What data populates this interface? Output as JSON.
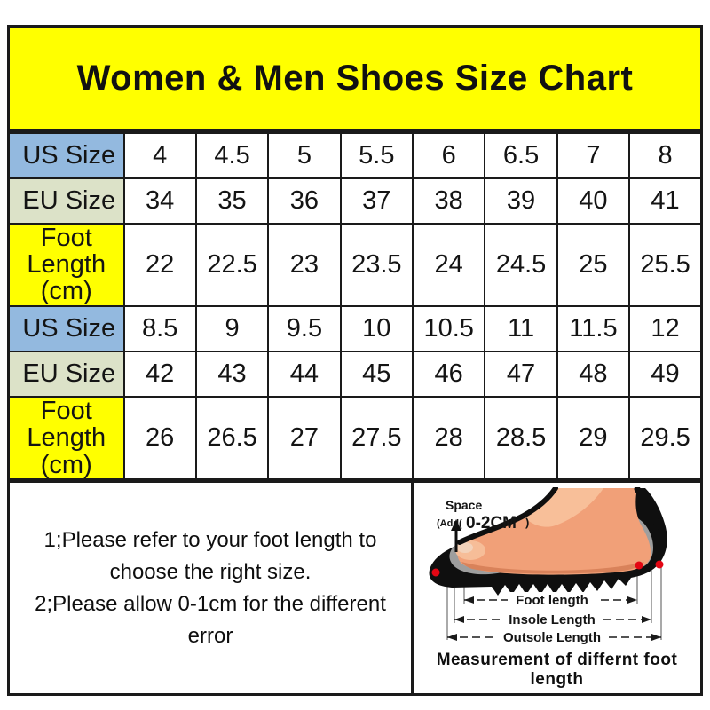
{
  "title": "Women & Men Shoes Size Chart",
  "chart_data": {
    "type": "table",
    "title": "Women & Men Shoes Size Chart",
    "rows": [
      {
        "header": "US Size",
        "style": "blue",
        "values": [
          "4",
          "4.5",
          "5",
          "5.5",
          "6",
          "6.5",
          "7",
          "8"
        ]
      },
      {
        "header": "EU Size",
        "style": "green",
        "values": [
          "34",
          "35",
          "36",
          "37",
          "38",
          "39",
          "40",
          "41"
        ]
      },
      {
        "header": "Foot Length (cm)",
        "style": "yellow",
        "values": [
          "22",
          "22.5",
          "23",
          "23.5",
          "24",
          "24.5",
          "25",
          "25.5"
        ]
      },
      {
        "header": "US Size",
        "style": "blue",
        "values": [
          "8.5",
          "9",
          "9.5",
          "10",
          "10.5",
          "11",
          "11.5",
          "12"
        ]
      },
      {
        "header": "EU Size",
        "style": "green",
        "values": [
          "42",
          "43",
          "44",
          "45",
          "46",
          "47",
          "48",
          "49"
        ]
      },
      {
        "header": "Foot Length (cm)",
        "style": "yellow",
        "values": [
          "26",
          "26.5",
          "27",
          "27.5",
          "28",
          "28.5",
          "29",
          "29.5"
        ]
      }
    ]
  },
  "notes": {
    "line1": "1;Please refer to your foot length to choose the right size.",
    "line2": "2;Please allow 0-1cm for the different error"
  },
  "diagram": {
    "space_label": "Space",
    "space_add_prefix": "(Add(",
    "space_value": "0-2CM",
    "space_suffix": ")",
    "foot_length_label": "Foot length",
    "insole_length_label": "Insole Length",
    "outsole_length_label": "Outsole Length",
    "caption": "Measurement of differnt foot length"
  },
  "colors": {
    "title_bg": "#FFFF00",
    "us_size_header_bg": "#93B9DF",
    "eu_size_header_bg": "#DCE2C8",
    "foot_length_header_bg": "#FFFF00",
    "border": "#1a1a1a",
    "accent_red": "#C00000",
    "dot_red": "#E30613",
    "foot_skin": "#F1A078",
    "insole_gray": "#9E9E9E"
  }
}
